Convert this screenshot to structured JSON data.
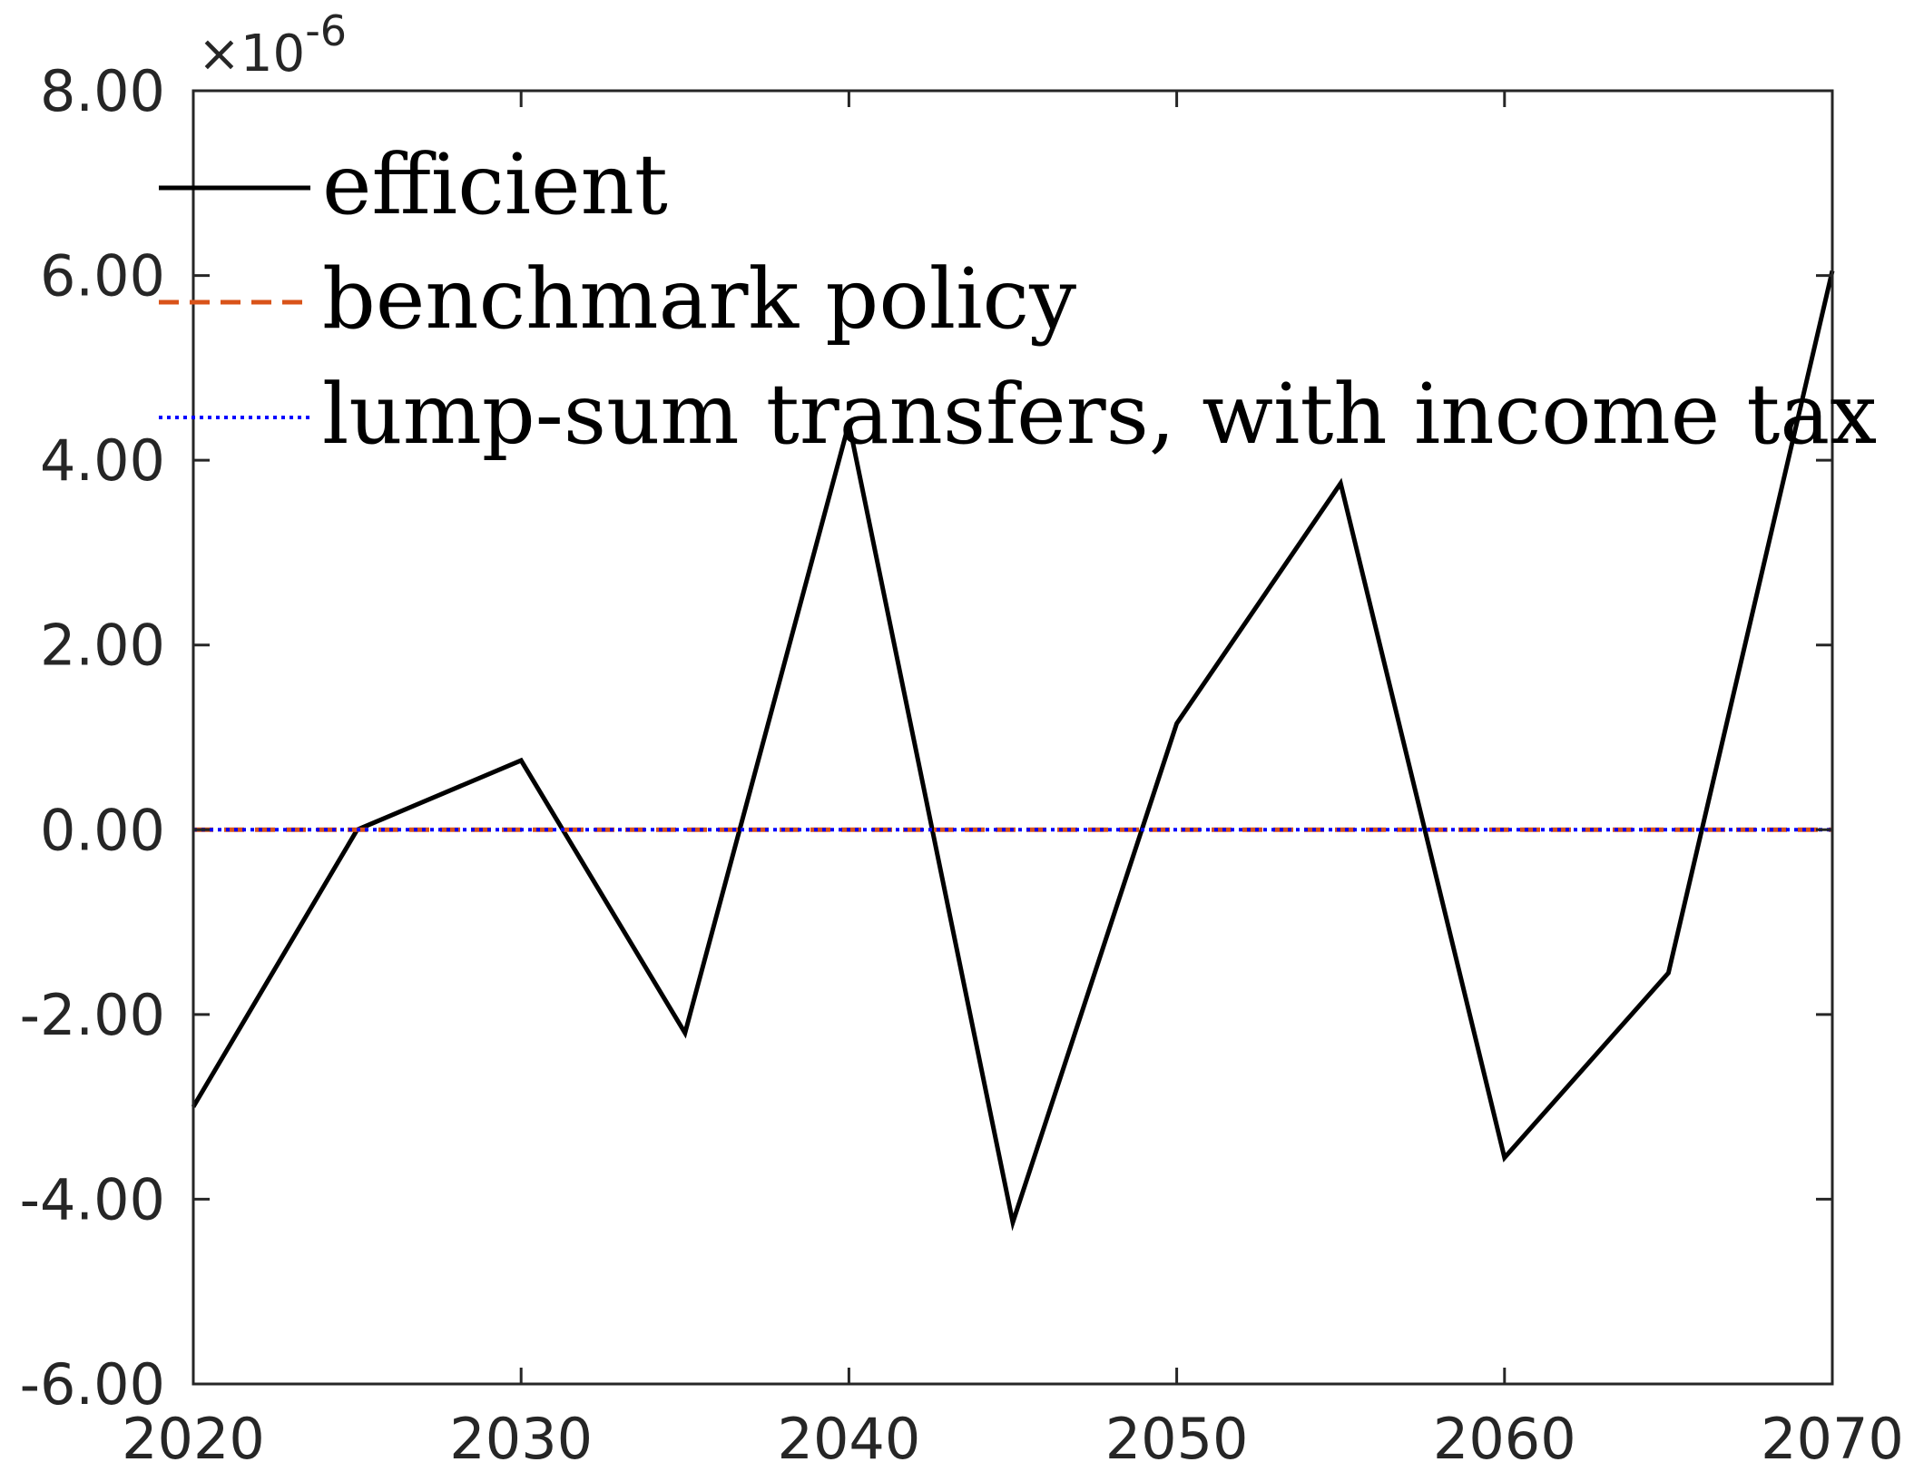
{
  "chart_data": {
    "type": "line",
    "title": "",
    "xlabel": "",
    "ylabel": "",
    "x": [
      2020,
      2025,
      2030,
      2035,
      2040,
      2045,
      2050,
      2055,
      2060,
      2065,
      2070
    ],
    "series": [
      {
        "name": "efficient",
        "color": "#000000",
        "style": "solid",
        "values": [
          -3.0,
          0.0,
          0.75,
          -2.2,
          4.4,
          -4.25,
          1.15,
          3.75,
          -3.55,
          -1.55,
          6.05
        ]
      },
      {
        "name": "benchmark policy",
        "color": "#D95319",
        "style": "dashed",
        "values": [
          0,
          0,
          0,
          0,
          0,
          0,
          0,
          0,
          0,
          0,
          0
        ]
      },
      {
        "name": "lump-sum transfers, with income tax",
        "color": "#0000FF",
        "style": "dotted",
        "values": [
          0,
          0,
          0,
          0,
          0,
          0,
          0,
          0,
          0,
          0,
          0
        ]
      }
    ],
    "xlim": [
      2020,
      2070
    ],
    "ylim": [
      -6,
      8
    ],
    "xticks": [
      "2020",
      "2030",
      "2040",
      "2050",
      "2060",
      "2070"
    ],
    "yticks": [
      "8.00",
      "6.00",
      "4.00",
      "2.00",
      "0.00",
      "-2.00",
      "-4.00",
      "-6.00"
    ],
    "y_multiplier": {
      "prefix": "×10",
      "exponent": "-6"
    },
    "legend": "top-left",
    "grid": false
  }
}
